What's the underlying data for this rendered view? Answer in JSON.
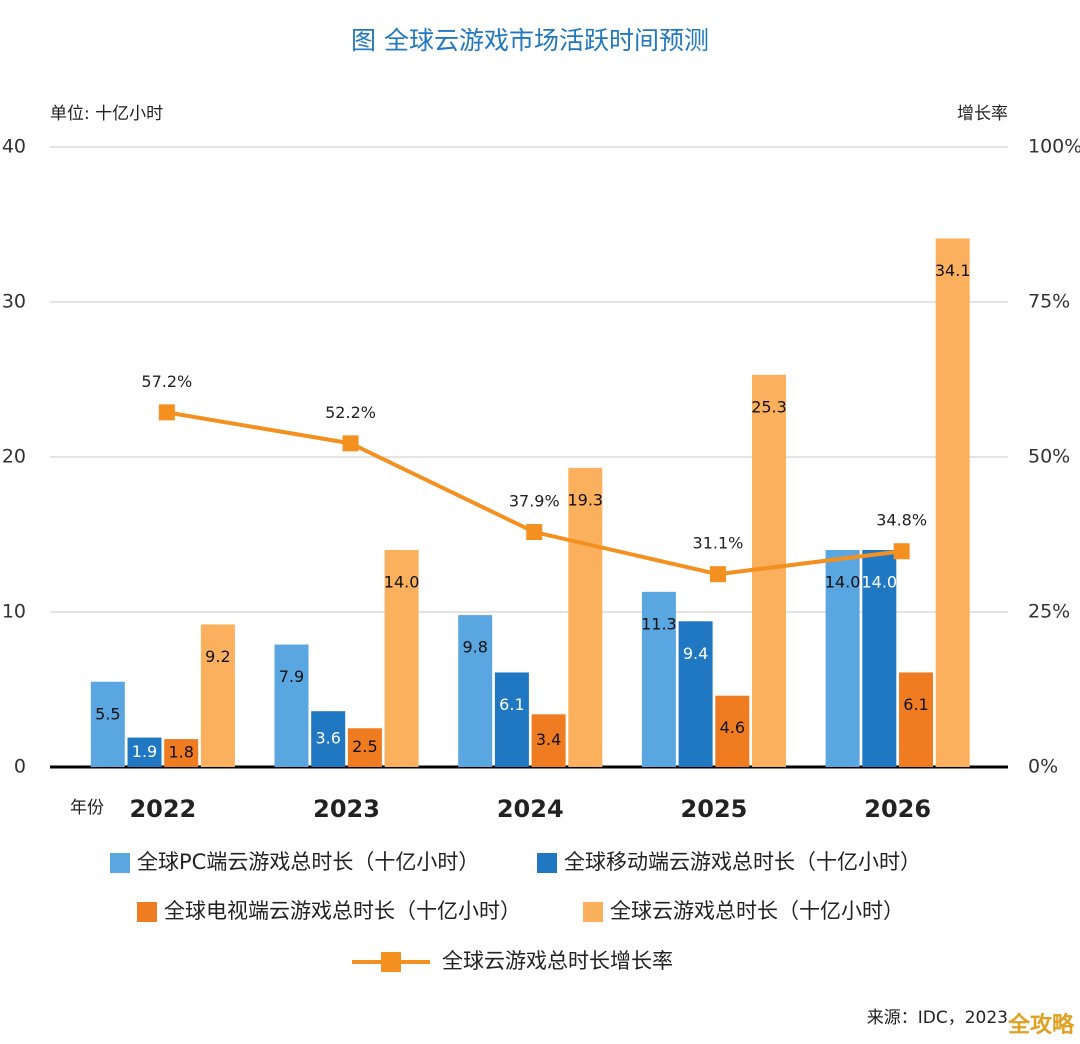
{
  "chart_data": {
    "type": "bar",
    "title": "图  全球云游戏市场活跃时间预测",
    "y_axis_label": "单位: 十亿小时",
    "y2_axis_label": "增长率",
    "x_axis_label": "年份",
    "source": "来源：IDC，2023",
    "watermark": "全攻略",
    "categories": [
      "2022",
      "2023",
      "2024",
      "2025",
      "2026"
    ],
    "ylim": [
      0,
      40
    ],
    "yticks": [
      0,
      10,
      20,
      30,
      40
    ],
    "y2lim": [
      0,
      100
    ],
    "y2ticks": [
      {
        "value": 0,
        "label": "0%"
      },
      {
        "value": 25,
        "label": "25%"
      },
      {
        "value": 50,
        "label": "50%"
      },
      {
        "value": 75,
        "label": "75%"
      },
      {
        "value": 100,
        "label": "100%"
      }
    ],
    "grid": true,
    "series": [
      {
        "name": "全球PC端云游戏总时长（十亿小时）",
        "color": "#5aa6e0",
        "values": [
          5.5,
          7.9,
          9.8,
          11.3,
          14.0
        ],
        "value_labels": [
          "5.5",
          "7.9",
          "9.8",
          "11.3",
          "14.0"
        ]
      },
      {
        "name": "全球移动端云游戏总时长（十亿小时）",
        "color": "#1f78c1",
        "values": [
          1.9,
          3.6,
          6.1,
          9.4,
          14.0
        ],
        "value_labels": [
          "1.9",
          "3.6",
          "6.1",
          "9.4",
          "14.0"
        ]
      },
      {
        "name": "全球电视端云游戏总时长（十亿小时）",
        "color": "#f07c22",
        "values": [
          1.8,
          2.5,
          3.4,
          4.6,
          6.1
        ],
        "value_labels": [
          "1.8",
          "2.5",
          "3.4",
          "4.6",
          "6.1"
        ]
      },
      {
        "name": "全球云游戏总时长（十亿小时）",
        "color": "#fbb05e",
        "values": [
          9.2,
          14.0,
          19.3,
          25.3,
          34.1
        ],
        "value_labels": [
          "9.2",
          "14.0",
          "19.3",
          "25.3",
          "34.1"
        ]
      },
      {
        "name": "全球云游戏总时长增长率",
        "type": "line",
        "axis": "y2",
        "color": "#f39020",
        "values": [
          57.2,
          52.2,
          37.9,
          31.1,
          34.8
        ],
        "value_labels": [
          "57.2%",
          "52.2%",
          "37.9%",
          "31.1%",
          "34.8%"
        ]
      }
    ]
  }
}
